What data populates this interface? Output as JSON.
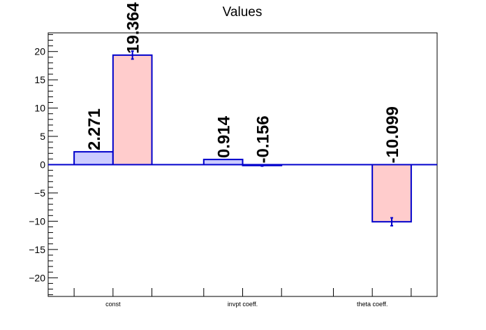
{
  "chart_data": {
    "type": "bar",
    "title": "Values",
    "categories": [
      "const",
      "invpt coeff.",
      "theta coeff."
    ],
    "ylim": [
      -23.3,
      23.3
    ],
    "y_ticks": [
      -20,
      -15,
      -10,
      -5,
      0,
      5,
      10,
      15,
      20
    ],
    "grid": false,
    "legend": "none",
    "series": [
      {
        "color": "#ccccff",
        "values": [
          2.271,
          0.914,
          null
        ],
        "labels": [
          "2.271",
          "0.914",
          null
        ],
        "errors": [
          0,
          0,
          null
        ]
      },
      {
        "color": "#ffcccc",
        "values": [
          19.364,
          -0.156,
          -10.099
        ],
        "labels": [
          "19.364",
          "-0.156",
          "-10.099"
        ],
        "errors": [
          0.7,
          0.1,
          0.7
        ]
      }
    ],
    "edge_color": "#0000cc"
  }
}
